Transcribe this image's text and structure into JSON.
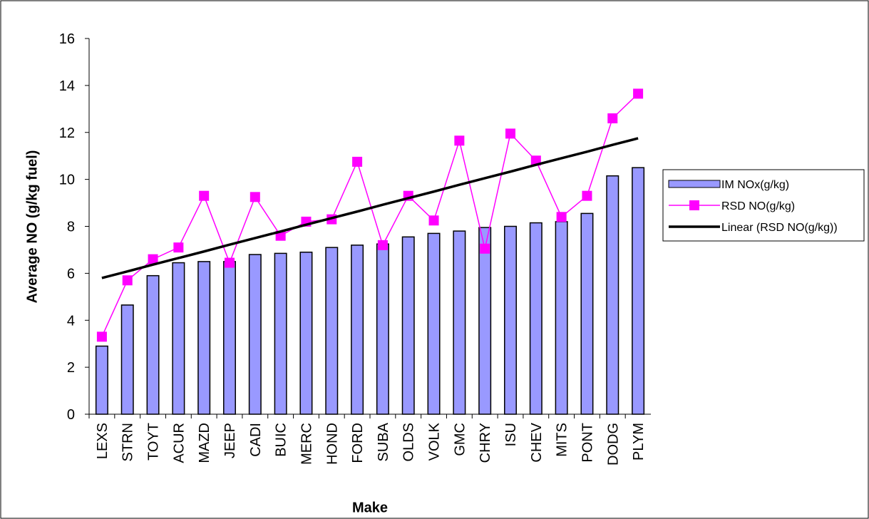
{
  "chart_data": {
    "type": "bar",
    "x_label": "Make",
    "y_label": "Average NO (g/kg fuel)",
    "categories": [
      "LEXS",
      "STRN",
      "TOYT",
      "ACUR",
      "MAZD",
      "JEEP",
      "CADI",
      "BUIC",
      "MERC",
      "HOND",
      "FORD",
      "SUBA",
      "OLDS",
      "VOLK",
      "GMC",
      "CHRY",
      "ISU",
      "CHEV",
      "MITS",
      "PONT",
      "DODG",
      "PLYM"
    ],
    "series": [
      {
        "name": "IM NOx(g/kg)",
        "type": "bar",
        "color": "#9999ff",
        "values": [
          2.9,
          4.65,
          5.9,
          6.45,
          6.5,
          6.5,
          6.8,
          6.85,
          6.9,
          7.1,
          7.2,
          7.25,
          7.55,
          7.7,
          7.8,
          7.95,
          8.0,
          8.15,
          8.2,
          8.55,
          10.15,
          10.5
        ]
      },
      {
        "name": "RSD NO(g/kg)",
        "type": "line",
        "marker": "square",
        "color": "#ff00ff",
        "values": [
          3.3,
          5.7,
          6.6,
          7.1,
          9.3,
          6.45,
          9.25,
          7.6,
          8.2,
          8.3,
          10.75,
          7.2,
          9.3,
          8.25,
          11.65,
          7.05,
          11.95,
          10.8,
          8.4,
          9.3,
          12.6,
          13.65
        ]
      },
      {
        "name": "Linear (RSD NO(g/kg))",
        "type": "line",
        "color": "#000000",
        "values": [
          5.8,
          6.08,
          6.37,
          6.65,
          6.93,
          7.22,
          7.5,
          7.78,
          8.07,
          8.35,
          8.63,
          8.92,
          9.2,
          9.48,
          9.77,
          10.05,
          10.33,
          10.62,
          10.9,
          11.18,
          11.47,
          11.75
        ]
      }
    ],
    "ylim": [
      0,
      16
    ],
    "yticks": [
      0,
      2,
      4,
      6,
      8,
      10,
      12,
      14,
      16
    ],
    "grid": false,
    "legend": "right"
  }
}
